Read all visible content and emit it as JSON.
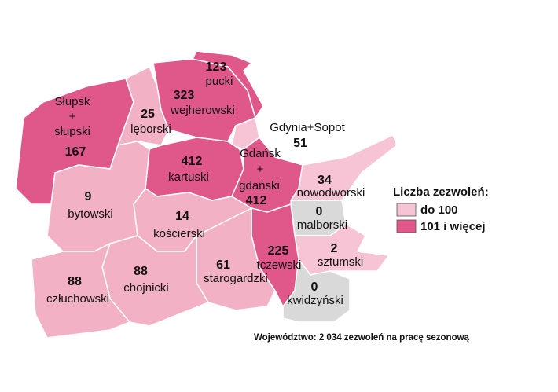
{
  "regions": [
    {
      "name": [
        "Słupsk",
        "+",
        "słupski"
      ],
      "value": 167,
      "fill": "#e0578a"
    },
    {
      "name": [
        "lęborski"
      ],
      "value": 25,
      "fill": "#f3b1c6"
    },
    {
      "name": [
        "wejherowski"
      ],
      "value": 323,
      "fill": "#e0578a"
    },
    {
      "name": [
        "pucki"
      ],
      "value": 123,
      "fill": "#e0578a"
    },
    {
      "name": [
        "Gdynia+Sopot"
      ],
      "value": 51,
      "fill": "#f6c4d4"
    },
    {
      "name": [
        "kartuski"
      ],
      "value": 412,
      "fill": "#e0578a"
    },
    {
      "name": [
        "Gdańsk",
        "+",
        "gdański"
      ],
      "value": 412,
      "fill": "#e0578a"
    },
    {
      "name": [
        "nowodworski"
      ],
      "value": 34,
      "fill": "#f6c4d4"
    },
    {
      "name": [
        "malborski"
      ],
      "value": 0,
      "fill": "#d9d9d9"
    },
    {
      "name": [
        "sztumski"
      ],
      "value": 2,
      "fill": "#f6c4d4"
    },
    {
      "name": [
        "tczewski"
      ],
      "value": 225,
      "fill": "#e0578a"
    },
    {
      "name": [
        "kwidzyński"
      ],
      "value": 0,
      "fill": "#d9d9d9"
    },
    {
      "name": [
        "starogardzki"
      ],
      "value": 61,
      "fill": "#f3b1c6"
    },
    {
      "name": [
        "kościerski"
      ],
      "value": 14,
      "fill": "#f3b1c6"
    },
    {
      "name": [
        "bytowski"
      ],
      "value": 9,
      "fill": "#f3b1c6"
    },
    {
      "name": [
        "chojnicki"
      ],
      "value": 88,
      "fill": "#f3b1c6"
    },
    {
      "name": [
        "człuchowski"
      ],
      "value": 88,
      "fill": "#f3b1c6"
    }
  ],
  "legend": {
    "title": "Liczba zezwoleń:",
    "items": [
      {
        "label": "do 100",
        "color": "#f6c4d4"
      },
      {
        "label": "101 i więcej",
        "color": "#e0578a"
      }
    ]
  },
  "footer": "Województwo: 2 034  zezwoleń na pracę sezonową"
}
